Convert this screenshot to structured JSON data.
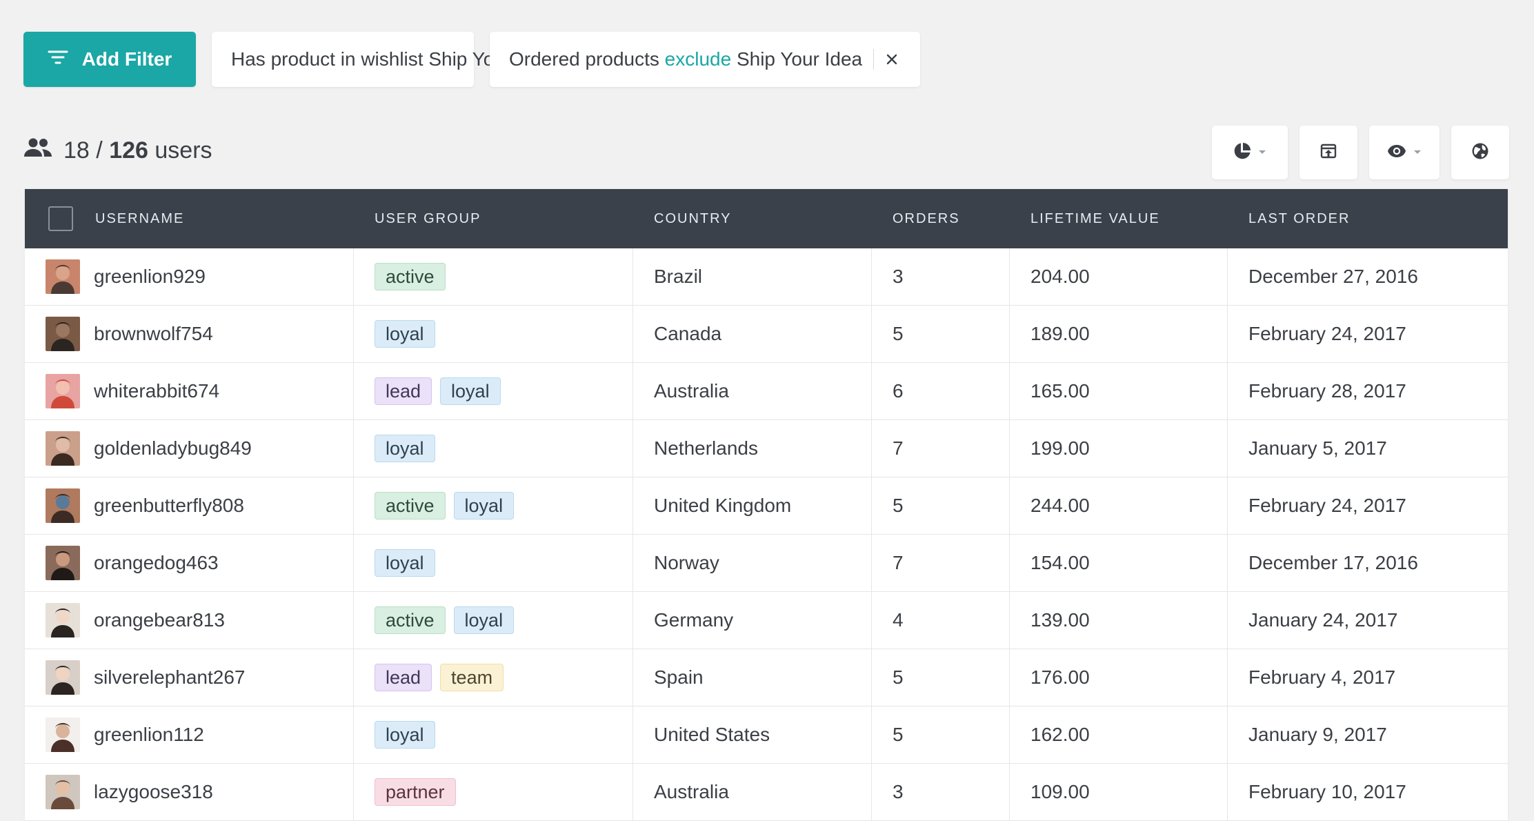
{
  "filters": {
    "add_label": "Add Filter",
    "chips": [
      {
        "text": "Has product in wishlist Ship Your Idea"
      },
      {
        "prefix": "Ordered products ",
        "operator": "exclude",
        "suffix": " Ship Your Idea"
      }
    ]
  },
  "summary": {
    "shown": "18",
    "separator": "/",
    "total": "126",
    "unit": "users"
  },
  "toolbar": {
    "buttons": [
      {
        "icon": "pie-chart-icon",
        "dropdown": true
      },
      {
        "icon": "export-icon",
        "dropdown": false
      },
      {
        "icon": "eye-icon",
        "dropdown": true
      },
      {
        "icon": "globe-icon",
        "dropdown": false
      }
    ]
  },
  "table": {
    "headers": [
      "USERNAME",
      "USER GROUP",
      "COUNTRY",
      "ORDERS",
      "LIFETIME VALUE",
      "LAST ORDER"
    ],
    "rows": [
      {
        "username": "greenlion929",
        "groups": [
          "active"
        ],
        "country": "Brazil",
        "orders": "3",
        "value": "204.00",
        "last": "December 27, 2016"
      },
      {
        "username": "brownwolf754",
        "groups": [
          "loyal"
        ],
        "country": "Canada",
        "orders": "5",
        "value": "189.00",
        "last": "February 24, 2017"
      },
      {
        "username": "whiterabbit674",
        "groups": [
          "lead",
          "loyal"
        ],
        "country": "Australia",
        "orders": "6",
        "value": "165.00",
        "last": "February 28, 2017"
      },
      {
        "username": "goldenladybug849",
        "groups": [
          "loyal"
        ],
        "country": "Netherlands",
        "orders": "7",
        "value": "199.00",
        "last": "January 5, 2017"
      },
      {
        "username": "greenbutterfly808",
        "groups": [
          "active",
          "loyal"
        ],
        "country": "United Kingdom",
        "orders": "5",
        "value": "244.00",
        "last": "February 24, 2017"
      },
      {
        "username": "orangedog463",
        "groups": [
          "loyal"
        ],
        "country": "Norway",
        "orders": "7",
        "value": "154.00",
        "last": "December 17, 2016"
      },
      {
        "username": "orangebear813",
        "groups": [
          "active",
          "loyal"
        ],
        "country": "Germany",
        "orders": "4",
        "value": "139.00",
        "last": "January 24, 2017"
      },
      {
        "username": "silverelephant267",
        "groups": [
          "lead",
          "team"
        ],
        "country": "Spain",
        "orders": "5",
        "value": "176.00",
        "last": "February 4, 2017"
      },
      {
        "username": "greenlion112",
        "groups": [
          "loyal"
        ],
        "country": "United States",
        "orders": "5",
        "value": "162.00",
        "last": "January 9, 2017"
      },
      {
        "username": "lazygoose318",
        "groups": [
          "partner"
        ],
        "country": "Australia",
        "orders": "3",
        "value": "109.00",
        "last": "February 10, 2017"
      }
    ]
  },
  "colors": {
    "accent": "#1aa7a5",
    "header_bg": "#3a414b",
    "page_bg": "#f1f1f1"
  }
}
